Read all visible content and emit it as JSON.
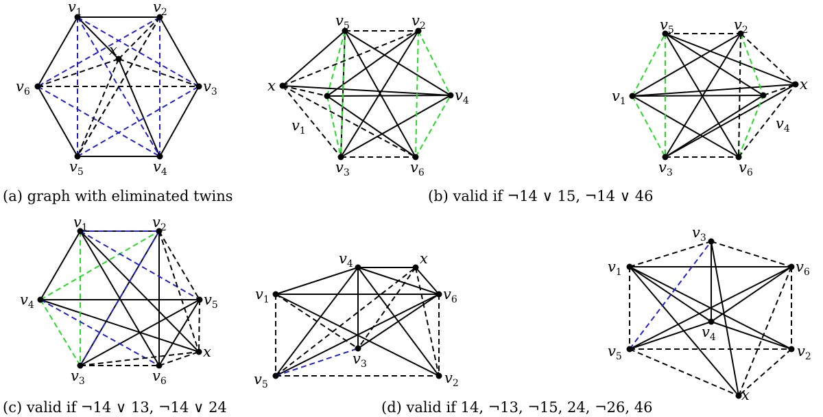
{
  "captions": {
    "a": "(a) graph with eliminated twins",
    "b": "(b) valid if ¬14 ∨ 15, ¬14 ∨ 46",
    "c": "(c) valid if ¬14 ∨ 13, ¬14 ∨ 24",
    "d": "(d) valid if 14, ¬13, ¬15, 24, ¬26, 46"
  },
  "colors": {
    "solid": "#000000",
    "dashed": "#000000",
    "blue": "#1f1fd0",
    "green": "#22dd22"
  },
  "graphs": [
    {
      "id": "a",
      "vertices": {
        "v1": [
          "v",
          "1"
        ],
        "v2": [
          "v",
          "2"
        ],
        "v3": [
          "v",
          "3"
        ],
        "v4": [
          "v",
          "4"
        ],
        "v5": [
          "v",
          "5"
        ],
        "v6": [
          "v",
          "6"
        ],
        "x": [
          "x",
          ""
        ]
      },
      "edges": [
        [
          "v1",
          "v2",
          "s"
        ],
        [
          "v2",
          "v3",
          "s"
        ],
        [
          "v3",
          "v4",
          "s"
        ],
        [
          "v4",
          "v5",
          "s"
        ],
        [
          "v5",
          "v6",
          "s"
        ],
        [
          "v6",
          "v1",
          "s"
        ],
        [
          "v1",
          "x",
          "s"
        ],
        [
          "x",
          "v4",
          "s"
        ],
        [
          "v1",
          "v5",
          "b"
        ],
        [
          "v1",
          "v4",
          "b"
        ],
        [
          "v1",
          "v3",
          "b"
        ],
        [
          "v2",
          "v4",
          "b"
        ],
        [
          "v2",
          "v6",
          "b"
        ],
        [
          "v2",
          "v5",
          "b"
        ],
        [
          "v6",
          "v4",
          "b"
        ],
        [
          "v5",
          "v3",
          "b"
        ],
        [
          "v6",
          "v3",
          "k"
        ],
        [
          "x",
          "v6",
          "k"
        ],
        [
          "x",
          "v3",
          "k"
        ],
        [
          "x",
          "v5",
          "k"
        ],
        [
          "x",
          "v2",
          "k"
        ],
        [
          "v2",
          "v5",
          "k"
        ]
      ]
    },
    {
      "id": "b1",
      "vertices": {
        "v5": [
          "v",
          "5"
        ],
        "v2": [
          "v",
          "2"
        ],
        "x": [
          "x",
          ""
        ],
        "v4": [
          "v",
          "4"
        ],
        "v1": [
          "v",
          "1"
        ],
        "v3": [
          "v",
          "3"
        ],
        "v6": [
          "v",
          "6"
        ]
      },
      "edges": [
        [
          "v1",
          "v2",
          "s"
        ],
        [
          "v1",
          "v4",
          "s"
        ],
        [
          "v1",
          "v6",
          "s"
        ],
        [
          "v5",
          "v3",
          "s"
        ],
        [
          "v5",
          "v6",
          "s"
        ],
        [
          "v2",
          "v3",
          "s"
        ],
        [
          "v3",
          "v4",
          "s"
        ],
        [
          "x",
          "v4",
          "s"
        ],
        [
          "x",
          "v5",
          "s"
        ],
        [
          "v5",
          "v4",
          "s"
        ],
        [
          "v5",
          "v1",
          "g"
        ],
        [
          "v5",
          "v3",
          "g"
        ],
        [
          "v1",
          "v3",
          "g"
        ],
        [
          "v2",
          "v4",
          "g"
        ],
        [
          "v2",
          "v6",
          "g"
        ],
        [
          "v6",
          "v4",
          "g"
        ],
        [
          "v5",
          "v2",
          "k"
        ],
        [
          "v3",
          "v6",
          "k"
        ],
        [
          "x",
          "v2",
          "k"
        ],
        [
          "x",
          "v3",
          "k"
        ],
        [
          "x",
          "v6",
          "k"
        ],
        [
          "x",
          "v1",
          "k"
        ]
      ]
    },
    {
      "id": "b2",
      "vertices": {
        "v5": [
          "v",
          "5"
        ],
        "v2": [
          "v",
          "2"
        ],
        "v1": [
          "v",
          "1"
        ],
        "x": [
          "x",
          ""
        ],
        "v4": [
          "v",
          "4"
        ],
        "v3": [
          "v",
          "3"
        ],
        "v6": [
          "v",
          "6"
        ]
      },
      "edges": [
        [
          "v1",
          "v4",
          "s"
        ],
        [
          "v1",
          "x",
          "s"
        ],
        [
          "v1",
          "v2",
          "s"
        ],
        [
          "v1",
          "v6",
          "s"
        ],
        [
          "v5",
          "v4",
          "s"
        ],
        [
          "v5",
          "v6",
          "s"
        ],
        [
          "v2",
          "v3",
          "s"
        ],
        [
          "v3",
          "v4",
          "s"
        ],
        [
          "v3",
          "x",
          "s"
        ],
        [
          "v5",
          "x",
          "s"
        ],
        [
          "v1",
          "v5",
          "g"
        ],
        [
          "v1",
          "v3",
          "g"
        ],
        [
          "v2",
          "v4",
          "g"
        ],
        [
          "v2",
          "v6",
          "g"
        ],
        [
          "v6",
          "v4",
          "g"
        ],
        [
          "v5",
          "v3",
          "g"
        ],
        [
          "v5",
          "v2",
          "k"
        ],
        [
          "v3",
          "v6",
          "k"
        ],
        [
          "v2",
          "x",
          "k"
        ],
        [
          "v6",
          "x",
          "k"
        ],
        [
          "v4",
          "x",
          "k"
        ],
        [
          "v2",
          "v6",
          "k"
        ]
      ]
    },
    {
      "id": "c",
      "vertices": {
        "v1": [
          "v",
          "1"
        ],
        "v2": [
          "v",
          "2"
        ],
        "v4": [
          "v",
          "4"
        ],
        "v5": [
          "v",
          "5"
        ],
        "x": [
          "x",
          ""
        ],
        "v3": [
          "v",
          "3"
        ],
        "v6": [
          "v",
          "6"
        ]
      },
      "edges": [
        [
          "v1",
          "v2",
          "s"
        ],
        [
          "v1",
          "v4",
          "s"
        ],
        [
          "v1",
          "v6",
          "s"
        ],
        [
          "v1",
          "x",
          "s"
        ],
        [
          "v2",
          "v3",
          "s"
        ],
        [
          "v2",
          "v6",
          "s"
        ],
        [
          "v3",
          "v5",
          "s"
        ],
        [
          "v4",
          "v5",
          "s"
        ],
        [
          "v4",
          "x",
          "s"
        ],
        [
          "v5",
          "v6",
          "s"
        ],
        [
          "v4",
          "v2",
          "g"
        ],
        [
          "v4",
          "v3",
          "g"
        ],
        [
          "v1",
          "v3",
          "g"
        ],
        [
          "v1",
          "v5",
          "b"
        ],
        [
          "v2",
          "v3",
          "b"
        ],
        [
          "v4",
          "v6",
          "b"
        ],
        [
          "v1",
          "v2",
          "b"
        ],
        [
          "v2",
          "v5",
          "k"
        ],
        [
          "v2",
          "x",
          "k"
        ],
        [
          "v5",
          "x",
          "k"
        ],
        [
          "v3",
          "x",
          "k"
        ],
        [
          "v6",
          "x",
          "k"
        ],
        [
          "v3",
          "v6",
          "k"
        ]
      ]
    },
    {
      "id": "d1",
      "vertices": {
        "v4": [
          "v",
          "4"
        ],
        "x": [
          "x",
          ""
        ],
        "v1": [
          "v",
          "1"
        ],
        "v6": [
          "v",
          "6"
        ],
        "v3": [
          "v",
          "3"
        ],
        "v5": [
          "v",
          "5"
        ],
        "v2": [
          "v",
          "2"
        ]
      },
      "edges": [
        [
          "v4",
          "x",
          "s"
        ],
        [
          "v1",
          "v4",
          "s"
        ],
        [
          "v1",
          "v6",
          "s"
        ],
        [
          "v1",
          "v2",
          "s"
        ],
        [
          "v4",
          "v6",
          "s"
        ],
        [
          "v4",
          "v5",
          "s"
        ],
        [
          "v4",
          "v2",
          "s"
        ],
        [
          "v4",
          "v3",
          "s"
        ],
        [
          "v5",
          "v6",
          "s"
        ],
        [
          "v3",
          "v6",
          "s"
        ],
        [
          "x",
          "v6",
          "s"
        ],
        [
          "v5",
          "v3",
          "b"
        ],
        [
          "v1",
          "v5",
          "k"
        ],
        [
          "v6",
          "v2",
          "k"
        ],
        [
          "v5",
          "v2",
          "k"
        ],
        [
          "v1",
          "v3",
          "k"
        ],
        [
          "v5",
          "x",
          "k"
        ],
        [
          "x",
          "v3",
          "k"
        ],
        [
          "x",
          "v2",
          "k"
        ]
      ]
    },
    {
      "id": "d2",
      "vertices": {
        "v3": [
          "v",
          "3"
        ],
        "v1": [
          "v",
          "1"
        ],
        "v6": [
          "v",
          "6"
        ],
        "v4": [
          "v",
          "4"
        ],
        "v5": [
          "v",
          "5"
        ],
        "v2": [
          "v",
          "2"
        ],
        "x": [
          "x",
          ""
        ]
      },
      "edges": [
        [
          "v1",
          "v6",
          "s"
        ],
        [
          "v1",
          "v4",
          "s"
        ],
        [
          "v1",
          "v2",
          "s"
        ],
        [
          "v1",
          "x",
          "s"
        ],
        [
          "v3",
          "v4",
          "s"
        ],
        [
          "v3",
          "x",
          "s"
        ],
        [
          "v4",
          "v5",
          "s"
        ],
        [
          "v4",
          "v6",
          "s"
        ],
        [
          "v5",
          "v6",
          "s"
        ],
        [
          "v4",
          "v2",
          "s"
        ],
        [
          "v5",
          "v3",
          "b"
        ],
        [
          "v1",
          "v3",
          "k"
        ],
        [
          "v3",
          "v6",
          "k"
        ],
        [
          "v1",
          "v5",
          "k"
        ],
        [
          "v6",
          "v2",
          "k"
        ],
        [
          "v5",
          "v2",
          "k"
        ],
        [
          "v5",
          "x",
          "k"
        ],
        [
          "v2",
          "x",
          "k"
        ],
        [
          "x",
          "v6",
          "k"
        ]
      ]
    }
  ]
}
